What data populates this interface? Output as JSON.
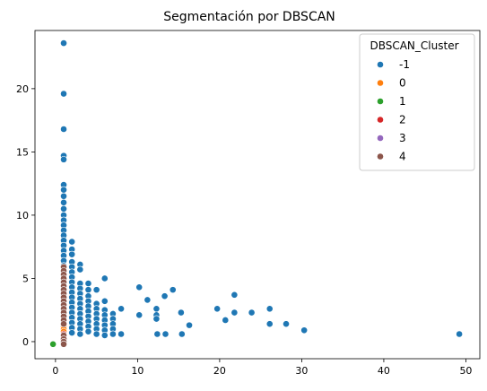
{
  "chart_data": {
    "type": "scatter",
    "title": "Segmentación por DBSCAN",
    "xlabel": "",
    "ylabel": "",
    "xlim": [
      -2.5,
      51.7
    ],
    "ylim": [
      -1.35,
      24.6
    ],
    "xticks": [
      0,
      10,
      20,
      30,
      40,
      50
    ],
    "yticks": [
      0,
      5,
      10,
      15,
      20
    ],
    "grid": false,
    "legend": {
      "title": "DBSCAN_Cluster",
      "placement": "top-right",
      "entries": [
        {
          "label": "-1",
          "color": "#1f77b4"
        },
        {
          "label": "0",
          "color": "#ff7f0e"
        },
        {
          "label": "1",
          "color": "#2ca02c"
        },
        {
          "label": "2",
          "color": "#d62728"
        },
        {
          "label": "3",
          "color": "#9467bd"
        },
        {
          "label": "4",
          "color": "#8c564b"
        }
      ]
    },
    "series": [
      {
        "name": "-1",
        "color": "#1f77b4",
        "points": [
          [
            1,
            23.6
          ],
          [
            1,
            19.6
          ],
          [
            1,
            16.8
          ],
          [
            1,
            14.7
          ],
          [
            1,
            14.4
          ],
          [
            1,
            12.4
          ],
          [
            1,
            12.0
          ],
          [
            1,
            11.5
          ],
          [
            1,
            11.0
          ],
          [
            1,
            10.5
          ],
          [
            1,
            10.0
          ],
          [
            1,
            9.6
          ],
          [
            1,
            9.2
          ],
          [
            1,
            8.8
          ],
          [
            1,
            8.4
          ],
          [
            1,
            8.0
          ],
          [
            1,
            7.6
          ],
          [
            1,
            7.2
          ],
          [
            1,
            6.8
          ],
          [
            1,
            6.4
          ],
          [
            1,
            6.0
          ],
          [
            2,
            7.9
          ],
          [
            2,
            7.3
          ],
          [
            2,
            6.9
          ],
          [
            2,
            6.3
          ],
          [
            2,
            5.9
          ],
          [
            2,
            5.5
          ],
          [
            2,
            5.1
          ],
          [
            2,
            4.7
          ],
          [
            2,
            4.3
          ],
          [
            2,
            3.9
          ],
          [
            2,
            3.5
          ],
          [
            2,
            3.1
          ],
          [
            2,
            2.7
          ],
          [
            2,
            2.3
          ],
          [
            2,
            1.9
          ],
          [
            2,
            1.5
          ],
          [
            2,
            1.1
          ],
          [
            2,
            0.7
          ],
          [
            3,
            6.1
          ],
          [
            3,
            5.7
          ],
          [
            3,
            4.6
          ],
          [
            3,
            4.2
          ],
          [
            3,
            3.8
          ],
          [
            3,
            3.4
          ],
          [
            3,
            3.0
          ],
          [
            3,
            2.6
          ],
          [
            3,
            2.2
          ],
          [
            3,
            1.8
          ],
          [
            3,
            1.4
          ],
          [
            3,
            1.0
          ],
          [
            3,
            0.6
          ],
          [
            4,
            4.6
          ],
          [
            4,
            4.1
          ],
          [
            4,
            3.6
          ],
          [
            4,
            3.2
          ],
          [
            4,
            2.8
          ],
          [
            4,
            2.4
          ],
          [
            4,
            2.0
          ],
          [
            4,
            1.6
          ],
          [
            4,
            1.2
          ],
          [
            4,
            0.8
          ],
          [
            5,
            4.1
          ],
          [
            5,
            3.0
          ],
          [
            5,
            2.6
          ],
          [
            5,
            2.2
          ],
          [
            5,
            1.8
          ],
          [
            5,
            1.4
          ],
          [
            5,
            1.0
          ],
          [
            5,
            0.6
          ],
          [
            6,
            5.0
          ],
          [
            6,
            3.2
          ],
          [
            6,
            2.5
          ],
          [
            6,
            2.1
          ],
          [
            6,
            1.7
          ],
          [
            6,
            1.3
          ],
          [
            6,
            0.9
          ],
          [
            6,
            0.5
          ],
          [
            7,
            2.2
          ],
          [
            7,
            1.8
          ],
          [
            7,
            1.4
          ],
          [
            7,
            1.0
          ],
          [
            7,
            0.6
          ],
          [
            8,
            2.6
          ],
          [
            8,
            0.6
          ],
          [
            10.2,
            4.3
          ],
          [
            10.2,
            2.1
          ],
          [
            11.2,
            3.3
          ],
          [
            12.3,
            2.6
          ],
          [
            12.3,
            2.1
          ],
          [
            12.3,
            1.8
          ],
          [
            12.4,
            0.6
          ],
          [
            13.3,
            3.6
          ],
          [
            13.4,
            0.6
          ],
          [
            14.3,
            4.1
          ],
          [
            15.3,
            2.3
          ],
          [
            15.4,
            0.6
          ],
          [
            16.3,
            1.3
          ],
          [
            19.7,
            2.6
          ],
          [
            20.7,
            1.7
          ],
          [
            21.8,
            3.7
          ],
          [
            21.8,
            2.3
          ],
          [
            23.9,
            2.3
          ],
          [
            26.1,
            2.6
          ],
          [
            26.1,
            1.4
          ],
          [
            28.1,
            1.4
          ],
          [
            30.3,
            0.9
          ],
          [
            49.2,
            0.6
          ]
        ]
      },
      {
        "name": "0",
        "color": "#ff7f0e",
        "points": [
          [
            1,
            1.2
          ],
          [
            1,
            1.0
          ],
          [
            1,
            0.8
          ]
        ]
      },
      {
        "name": "1",
        "color": "#2ca02c",
        "points": [
          [
            -0.3,
            -0.2
          ]
        ]
      },
      {
        "name": "2",
        "color": "#d62728",
        "points": [
          [
            1,
            0.6
          ],
          [
            1,
            0.4
          ]
        ]
      },
      {
        "name": "3",
        "color": "#9467bd",
        "points": [
          [
            1,
            0.3
          ]
        ]
      },
      {
        "name": "4",
        "color": "#8c564b",
        "points": [
          [
            1,
            5.9
          ],
          [
            1,
            5.6
          ],
          [
            1,
            5.3
          ],
          [
            1,
            5.0
          ],
          [
            1,
            4.7
          ],
          [
            1,
            4.4
          ],
          [
            1,
            4.1
          ],
          [
            1,
            3.8
          ],
          [
            1,
            3.5
          ],
          [
            1,
            3.2
          ],
          [
            1,
            2.9
          ],
          [
            1,
            2.6
          ],
          [
            1,
            2.3
          ],
          [
            1,
            2.0
          ],
          [
            1,
            1.7
          ],
          [
            1,
            1.4
          ],
          [
            1,
            0.5
          ],
          [
            1,
            0.2
          ],
          [
            1,
            0.0
          ],
          [
            1,
            -0.2
          ]
        ]
      }
    ]
  }
}
